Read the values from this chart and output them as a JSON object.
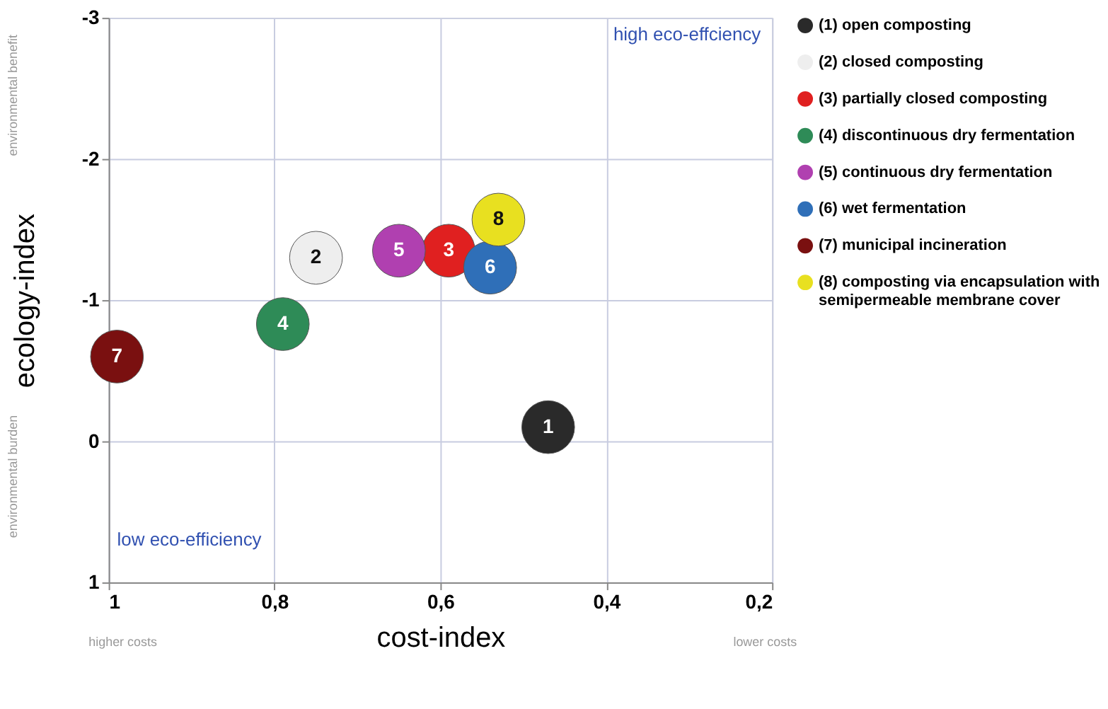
{
  "chart_data": {
    "type": "scatter",
    "xlabel": "cost-index",
    "ylabel": "ecology-index",
    "xlim": [
      1,
      0.2
    ],
    "ylim": [
      1,
      -3
    ],
    "xticks": [
      1,
      {
        "value": 0.8,
        "label": "0,8"
      },
      {
        "value": 0.6,
        "label": "0,6"
      },
      {
        "value": 0.4,
        "label": "0,4"
      },
      {
        "value": 0.2,
        "label": "0,2"
      }
    ],
    "yticks": [
      -3,
      -2,
      -1,
      0,
      1
    ],
    "grid": true,
    "legend": "right",
    "marker": "circle",
    "series": [
      {
        "name": "(1) open composting",
        "color": "#2a2a2a",
        "x": [
          0.47
        ],
        "values": [
          -0.1
        ]
      },
      {
        "name": "(2) closed composting",
        "color": "#eeeeee",
        "x": [
          0.75
        ],
        "values": [
          -1.3
        ]
      },
      {
        "name": "(3) partially closed composting",
        "color": "#e02020",
        "x": [
          0.59
        ],
        "values": [
          -1.35
        ]
      },
      {
        "name": "(4) discontinuous dry fermentation",
        "color": "#2e8b57",
        "x": [
          0.79
        ],
        "values": [
          -0.83
        ]
      },
      {
        "name": "(5) continuous dry fermentation",
        "color": "#b040b0",
        "x": [
          0.65
        ],
        "values": [
          -1.35
        ]
      },
      {
        "name": "(6) wet fermentation",
        "color": "#2f6fb8",
        "x": [
          0.54
        ],
        "values": [
          -1.23
        ]
      },
      {
        "name": "(7) municipal incineration",
        "color": "#7a1010",
        "x": [
          0.99
        ],
        "values": [
          -0.6
        ]
      },
      {
        "name": "(8) composting via encapsulation with semipermeable membrane cover",
        "color": "#e8e020",
        "x": [
          0.53
        ],
        "values": [
          -1.57
        ]
      }
    ],
    "annotations": [
      {
        "text": "1",
        "x": 0.47,
        "y": -0.1
      },
      {
        "text": "2",
        "x": 0.75,
        "y": -1.3
      },
      {
        "text": "3",
        "x": 0.59,
        "y": -1.35
      },
      {
        "text": "4",
        "x": 0.79,
        "y": -0.83
      },
      {
        "text": "5",
        "x": 0.65,
        "y": -1.35
      },
      {
        "text": "6",
        "x": 0.54,
        "y": -1.23
      },
      {
        "text": "7",
        "x": 0.99,
        "y": -0.6
      },
      {
        "text": "8",
        "x": 0.53,
        "y": -1.57
      },
      "high eco-effciency",
      "low eco-efficiency",
      "environmental benefit",
      "environmental burden",
      "higher costs",
      "lower costs"
    ]
  }
}
